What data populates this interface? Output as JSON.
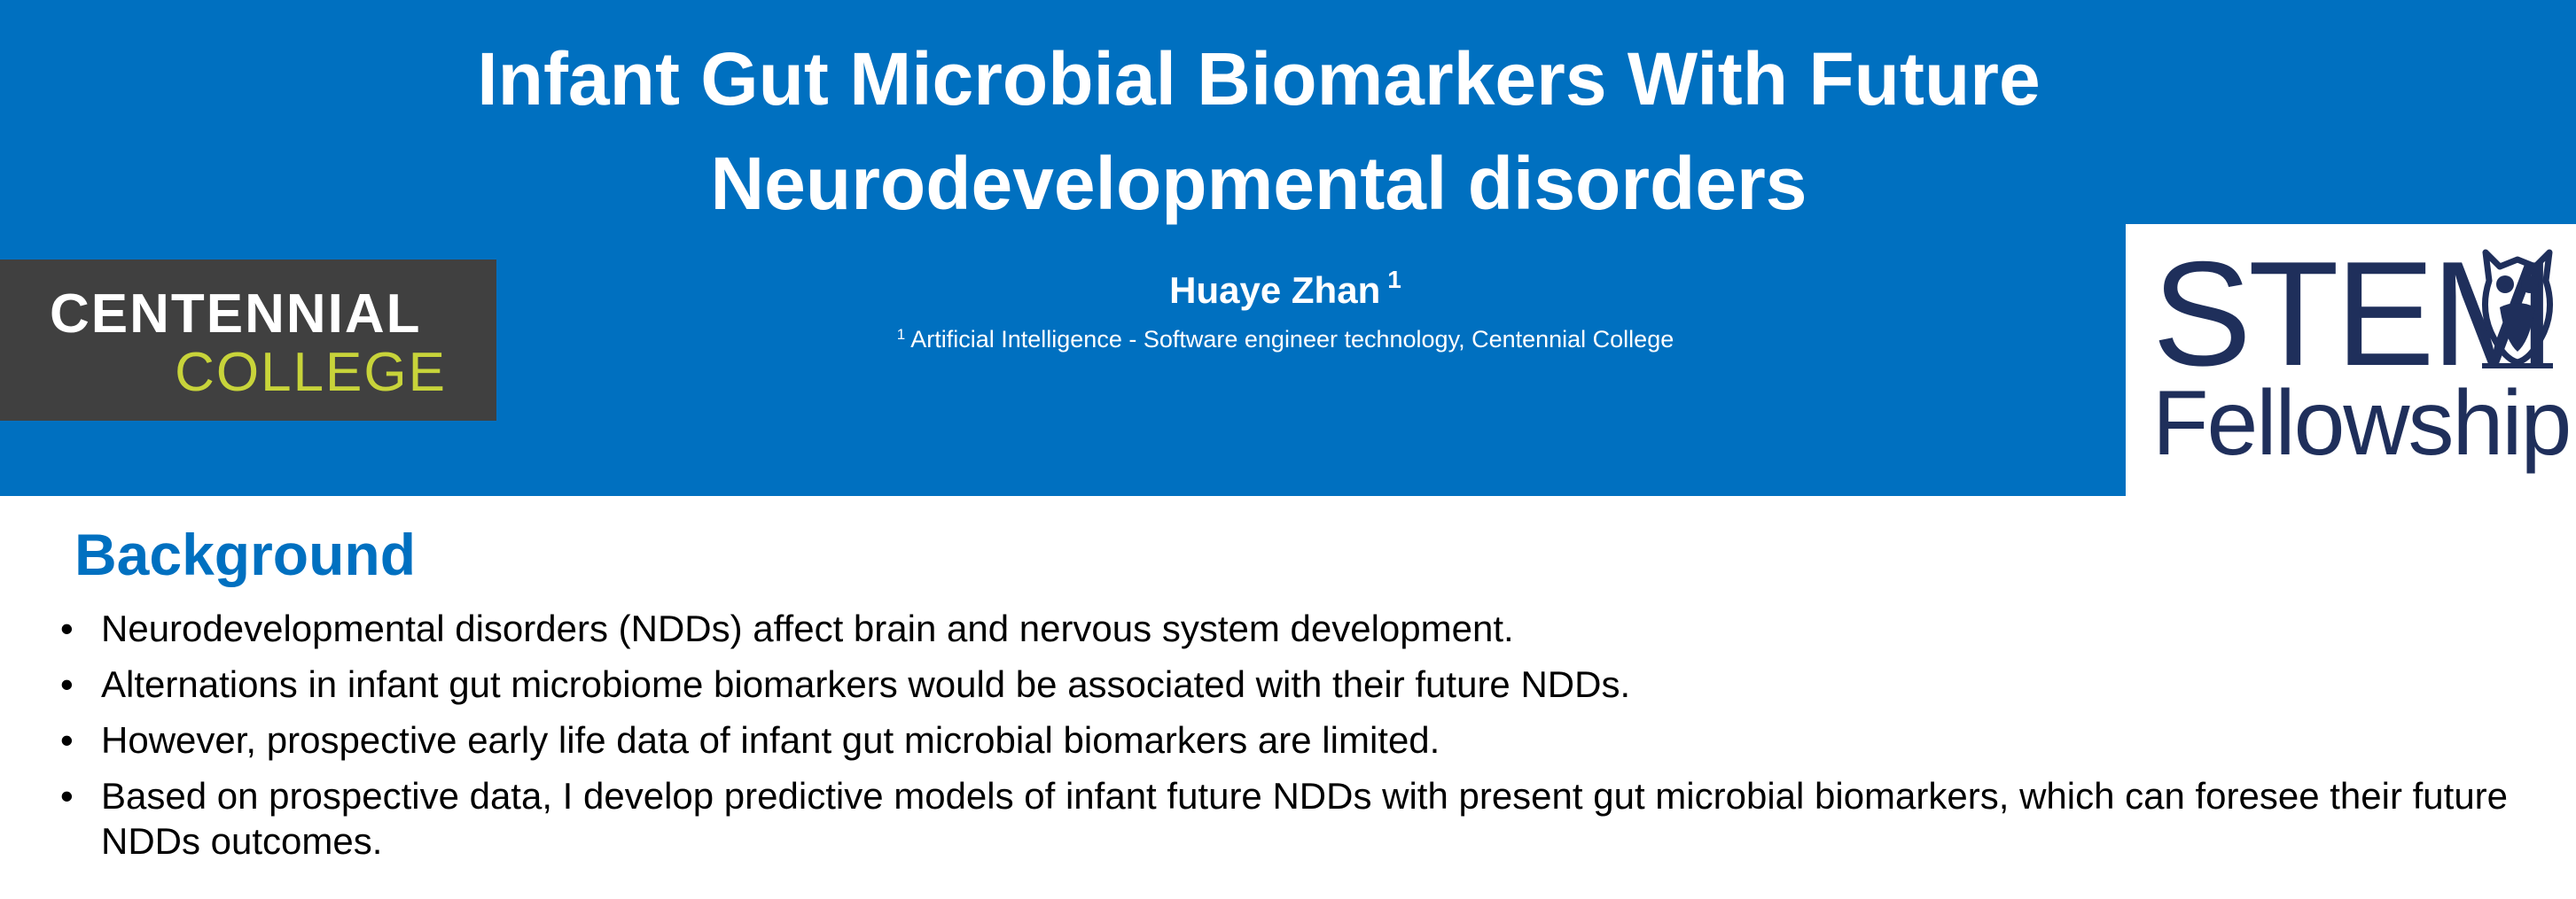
{
  "banner": {
    "title_line1": "Infant Gut Microbial Biomarkers With Future",
    "title_line2": "Neurodevelopmental disorders",
    "author": "Huaye Zhan",
    "author_sup": "1",
    "affiliation_sup": "1",
    "affiliation": "Artificial Intelligence - Software engineer technology, Centennial College"
  },
  "logos": {
    "centennial_line1": "CENTENNIAL",
    "centennial_line2": "COLLEGE",
    "stem_line1": "STEM",
    "stem_line2": "Fellowship"
  },
  "background": {
    "heading": "Background",
    "bullet_glyph": "•",
    "bullets": [
      "Neurodevelopmental disorders (NDDs) affect brain and nervous system development.",
      "Alternations in infant gut microbiome biomarkers would be associated with their future NDDs.",
      "However, prospective early life data of infant gut microbial biomarkers are limited.",
      "Based on prospective data, I develop predictive models of infant future NDDs with present gut microbial biomarkers, which can foresee their future NDDs outcomes."
    ]
  },
  "colors": {
    "banner_blue": "#0070c0",
    "centennial_gray": "#404040",
    "centennial_yellow": "#c8d43a",
    "stem_navy": "#1f2f5b"
  }
}
